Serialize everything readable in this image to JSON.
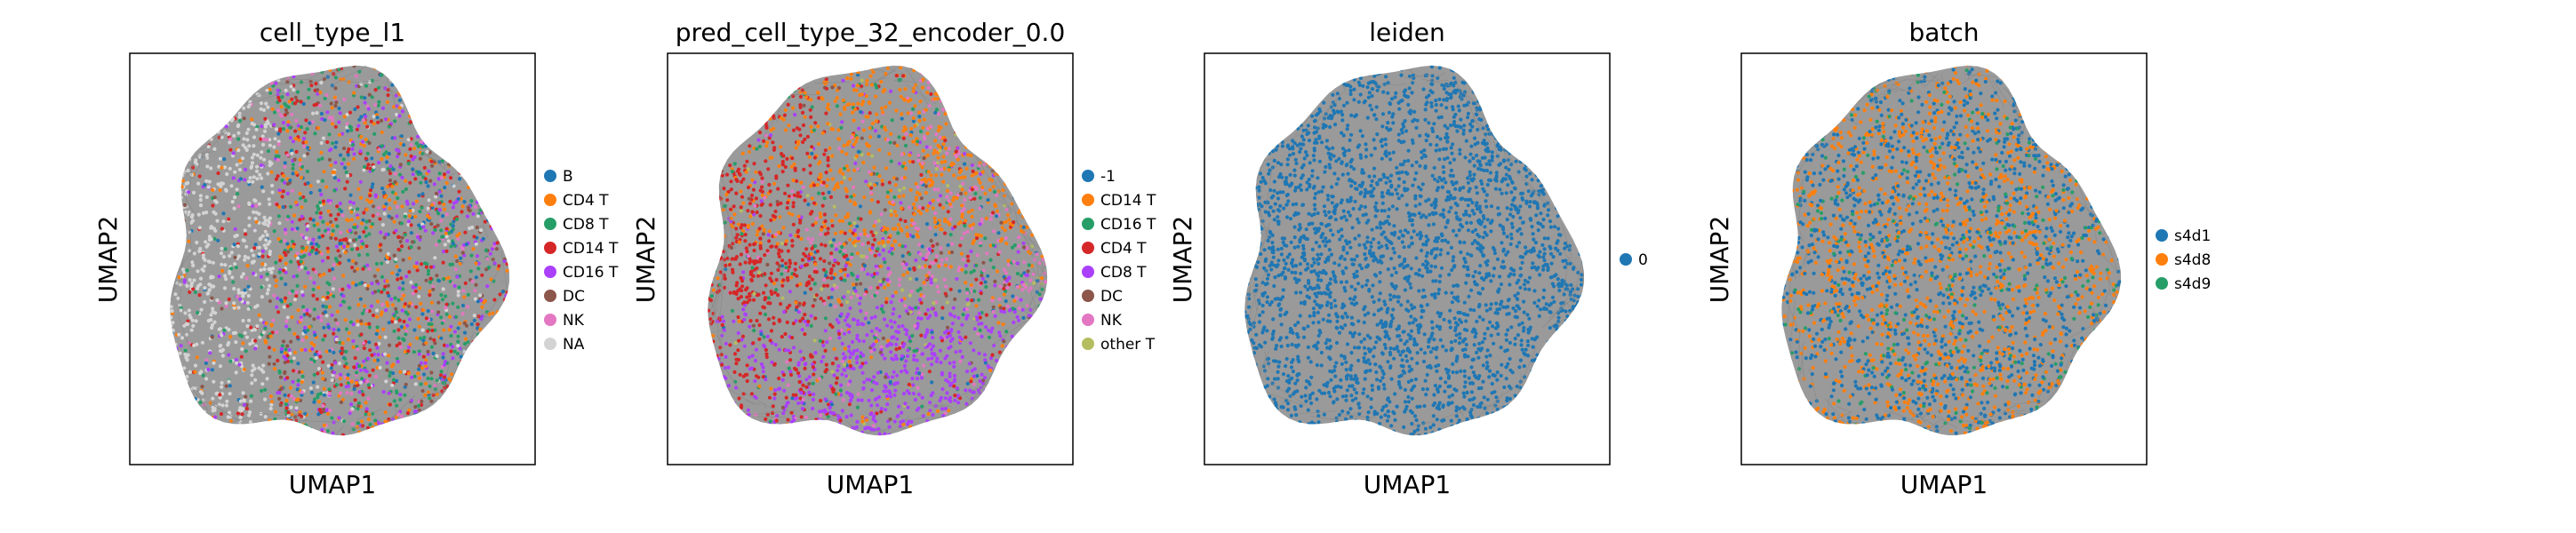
{
  "chart_data": [
    {
      "type": "scatter",
      "title": "cell_type_l1",
      "xlabel": "UMAP1",
      "ylabel": "UMAP2",
      "grid": false,
      "legend_position": "right",
      "series": [
        {
          "name": "B",
          "color": "#1f77b4"
        },
        {
          "name": "CD4 T",
          "color": "#ff7f0e"
        },
        {
          "name": "CD8 T",
          "color": "#279e68"
        },
        {
          "name": "CD14 T",
          "color": "#d62728"
        },
        {
          "name": "CD16 T",
          "color": "#aa40fc"
        },
        {
          "name": "DC",
          "color": "#8c564b"
        },
        {
          "name": "NK",
          "color": "#e377c2"
        },
        {
          "name": "NA",
          "color": "#d3d3d3"
        }
      ]
    },
    {
      "type": "scatter",
      "title": "pred_cell_type_32_encoder_0.0",
      "xlabel": "UMAP1",
      "ylabel": "UMAP2",
      "grid": false,
      "legend_position": "right",
      "series": [
        {
          "name": "-1",
          "color": "#1f77b4"
        },
        {
          "name": "CD14 T",
          "color": "#ff7f0e"
        },
        {
          "name": "CD16 T",
          "color": "#279e68"
        },
        {
          "name": "CD4 T",
          "color": "#d62728"
        },
        {
          "name": "CD8 T",
          "color": "#aa40fc"
        },
        {
          "name": "DC",
          "color": "#8c564b"
        },
        {
          "name": "NK",
          "color": "#e377c2"
        },
        {
          "name": "other T",
          "color": "#b5bd61"
        }
      ]
    },
    {
      "type": "scatter",
      "title": "leiden",
      "xlabel": "UMAP1",
      "ylabel": "UMAP2",
      "grid": false,
      "legend_position": "right",
      "series": [
        {
          "name": "0",
          "color": "#1f77b4"
        }
      ]
    },
    {
      "type": "scatter",
      "title": "batch",
      "xlabel": "UMAP1",
      "ylabel": "UMAP2",
      "grid": false,
      "legend_position": "right",
      "series": [
        {
          "name": "s4d1",
          "color": "#1f77b4"
        },
        {
          "name": "s4d8",
          "color": "#ff7f0e"
        },
        {
          "name": "s4d9",
          "color": "#279e68"
        }
      ]
    }
  ]
}
